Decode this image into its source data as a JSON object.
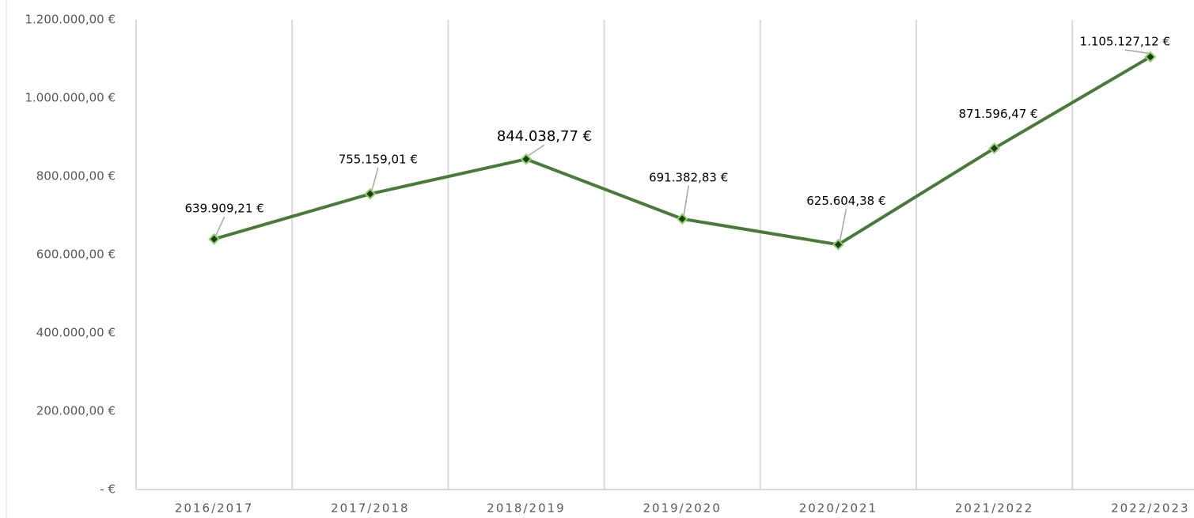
{
  "chart_data": {
    "type": "line",
    "categories": [
      "2016/2017",
      "2017/2018",
      "2018/2019",
      "2019/2020",
      "2020/2021",
      "2021/2022",
      "2022/2023"
    ],
    "series": [
      {
        "name": "Series 1",
        "color": "#4a7a3a",
        "values": [
          639909.21,
          755159.01,
          844038.77,
          691382.83,
          625604.38,
          871596.47,
          1105127.12
        ],
        "value_labels": [
          "639.909,21 €",
          "755.159,01 €",
          "844.038,77 €",
          "691.382,83 €",
          "625.604,38 €",
          "871.596,47 €",
          "1.105.127,12 €"
        ]
      }
    ],
    "ylim": [
      0,
      1200000
    ],
    "yticks": [
      {
        "value": 0,
        "label": "-  €"
      },
      {
        "value": 200000,
        "label": "200.000,00 €"
      },
      {
        "value": 400000,
        "label": "400.000,00 €"
      },
      {
        "value": 600000,
        "label": "600.000,00 €"
      },
      {
        "value": 800000,
        "label": "800.000,00 €"
      },
      {
        "value": 1000000,
        "label": "1.000.000,00 €"
      },
      {
        "value": 1200000,
        "label": "1.200.000,00 €"
      }
    ]
  }
}
